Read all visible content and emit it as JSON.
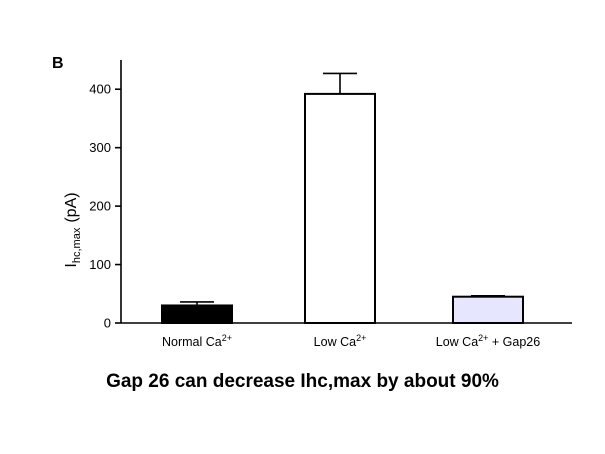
{
  "panel_label": "B",
  "caption": "Gap 26 can decrease Ihc,max by about 90%",
  "chart_data": {
    "type": "bar",
    "ylabel": {
      "main": "I",
      "sub": "hc,max",
      "unit": "(pA)"
    },
    "ylim": [
      0,
      450
    ],
    "yticks": [
      0,
      100,
      200,
      300,
      400
    ],
    "grid": false,
    "categories": [
      {
        "base": "Normal Ca",
        "sup": "2+",
        "after": ""
      },
      {
        "base": "Low Ca",
        "sup": "2+",
        "after": ""
      },
      {
        "base": "Low Ca",
        "sup": "2+",
        "after": " + Gap26"
      }
    ],
    "values": [
      30,
      392,
      45
    ],
    "errors": [
      6,
      35,
      1.5
    ],
    "fills": [
      "#000000",
      "#ffffff",
      "#e6e6ff"
    ]
  }
}
